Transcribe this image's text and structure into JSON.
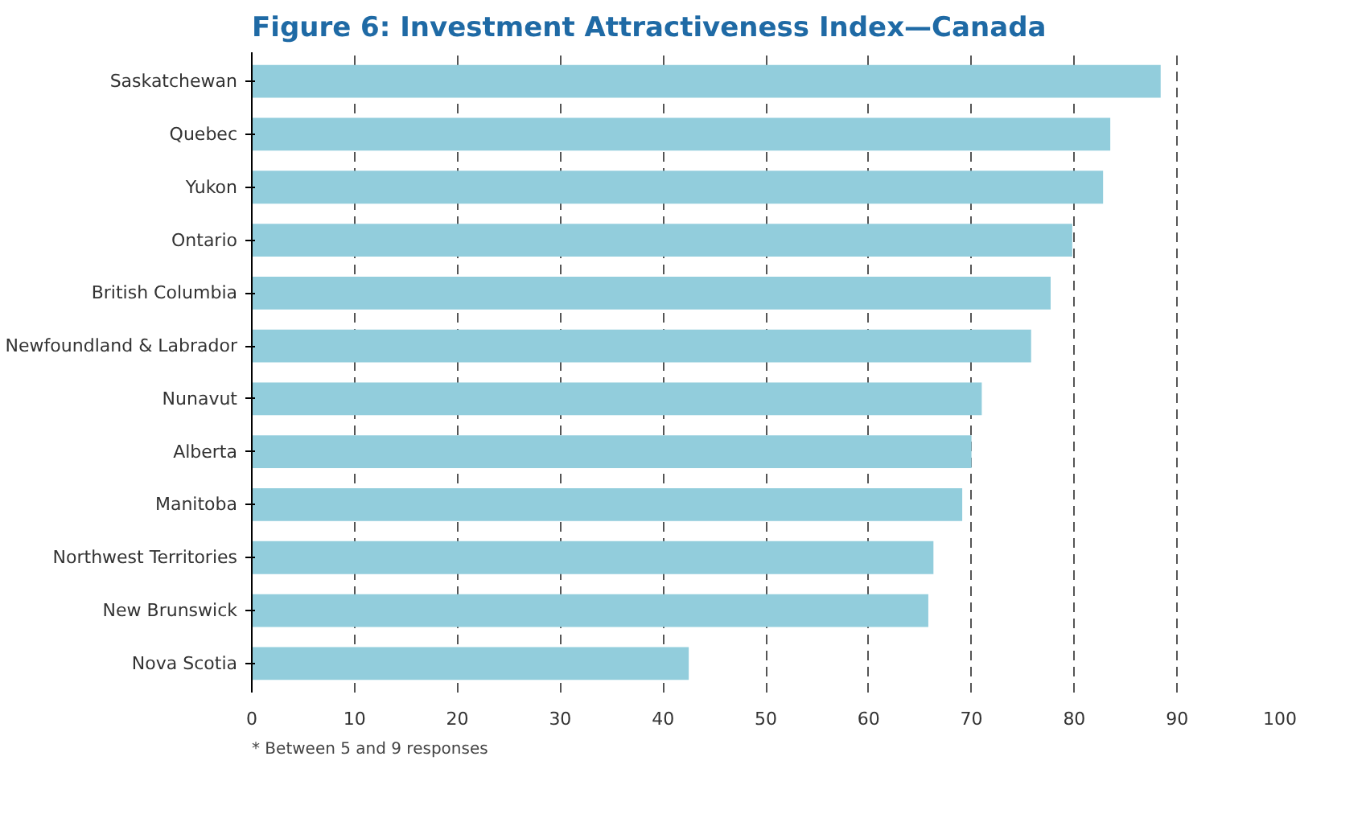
{
  "chart_data": {
    "type": "bar",
    "orientation": "horizontal",
    "title": "Figure 6: Investment Attractiveness Index—Canada",
    "categories": [
      "Saskatchewan",
      "Quebec",
      "Yukon",
      "Ontario",
      "British Columbia",
      "Newfoundland & Labrador",
      "Nunavut",
      "Alberta",
      "Manitoba",
      "Northwest Territories",
      "New Brunswick",
      "Nova Scotia"
    ],
    "values": [
      88.4,
      83.5,
      82.8,
      79.8,
      77.7,
      75.8,
      71.0,
      70.0,
      69.1,
      66.3,
      65.8,
      42.5
    ],
    "color": "#92cddc",
    "xlim": [
      0,
      100
    ],
    "xticks": [
      0,
      10,
      20,
      30,
      40,
      50,
      60,
      70,
      80,
      90,
      100
    ],
    "grid": "x",
    "annotations": [
      "* Between 5 and 9 responses"
    ]
  }
}
